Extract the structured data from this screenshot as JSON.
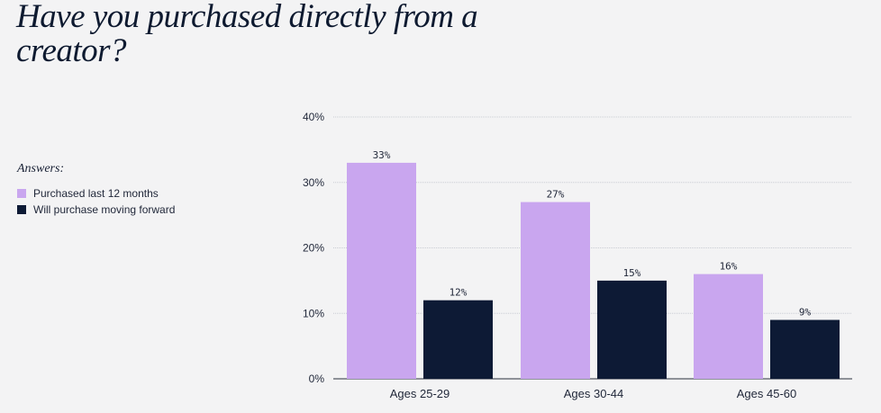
{
  "title": "Have you purchased directly from a creator?",
  "legend": {
    "title": "Answers:",
    "items": [
      {
        "label": "Purchased last 12 months",
        "color": "#c9a6ef"
      },
      {
        "label": "Will purchase moving forward",
        "color": "#0d1a35"
      }
    ]
  },
  "chart_data": {
    "type": "bar",
    "title": "Have you purchased directly from a creator?",
    "categories": [
      "Ages 25-29",
      "Ages 30-44",
      "Ages 45-60"
    ],
    "series": [
      {
        "name": "Purchased last 12 months",
        "values": [
          33,
          27,
          16
        ],
        "color": "#c9a6ef"
      },
      {
        "name": "Will purchase moving forward",
        "values": [
          12,
          15,
          9
        ],
        "color": "#0d1a35"
      }
    ],
    "value_suffix": "%",
    "ylim": [
      0,
      40
    ],
    "yticks": [
      0,
      10,
      20,
      30,
      40
    ],
    "ytick_labels": [
      "0%",
      "10%",
      "20%",
      "30%",
      "40%"
    ],
    "grid": true,
    "legend_position": "left",
    "xlabel": "",
    "ylabel": ""
  }
}
